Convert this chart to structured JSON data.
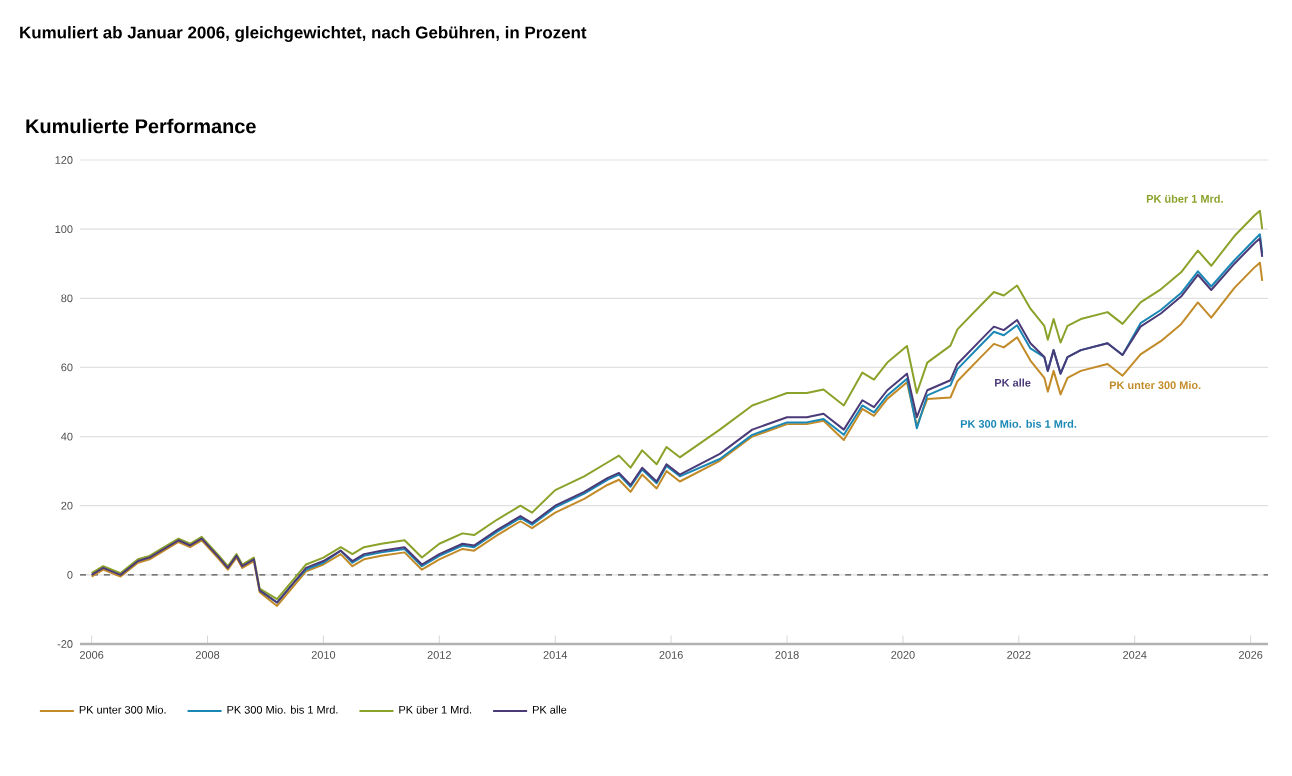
{
  "chart_data": {
    "type": "line",
    "title": "Kumuliert ab Januar 2006, gleichgewichtet, nach Gebühren, in Prozent",
    "subtitle": "Kumulierte Performance",
    "x": [
      2006.0,
      2006.2,
      2006.5,
      2006.8,
      2007.0,
      2007.2,
      2007.5,
      2007.7,
      2007.9,
      2008.2,
      2008.35,
      2008.5,
      2008.6,
      2008.8,
      2008.9,
      2009.2,
      2009.5,
      2009.7,
      2010.0,
      2010.3,
      2010.5,
      2010.7,
      2011.0,
      2011.4,
      2011.7,
      2012.0,
      2012.4,
      2012.6,
      2013.0,
      2013.4,
      2013.6,
      2014.0,
      2014.5,
      2014.9,
      2015.1,
      2015.3,
      2015.5,
      2015.75,
      2015.92,
      2016.15,
      2016.84,
      2017.4,
      2018.0,
      2018.34,
      2018.63,
      2018.98,
      2019.3,
      2019.5,
      2019.73,
      2020.07,
      2020.24,
      2020.42,
      2020.82,
      2020.94,
      2021.34,
      2021.57,
      2021.74,
      2021.97,
      2022.2,
      2022.44,
      2022.5,
      2022.6,
      2022.72,
      2022.84,
      2023.07,
      2023.53,
      2023.79,
      2024.1,
      2024.45,
      2024.8,
      2025.09,
      2025.32,
      2025.72,
      2026.07,
      2026.16,
      2026.2
    ],
    "series": [
      {
        "name": "PK unter 300 Mio.",
        "color": "#c28b28",
        "values": [
          -0.5,
          1.5,
          -0.5,
          3.5,
          4.5,
          6.5,
          9.5,
          8,
          10,
          4.5,
          1.5,
          5,
          2,
          4,
          -5,
          -9,
          -3,
          1,
          3,
          6,
          2.5,
          4.5,
          5.5,
          6.5,
          1.5,
          4.5,
          7.5,
          7,
          11.5,
          15.5,
          13.5,
          18,
          22,
          26,
          27.5,
          24,
          29,
          25,
          30,
          27,
          33,
          40,
          43.6,
          43.6,
          44.6,
          39,
          48,
          46,
          50.9,
          55.7,
          43.1,
          50.9,
          51.3,
          56,
          62.9,
          66.8,
          65.8,
          68.7,
          62,
          57,
          53,
          59,
          52.2,
          57,
          59,
          61,
          57.6,
          63.8,
          67.6,
          72.5,
          78.8,
          74.4,
          83,
          89,
          90.3,
          85
        ]
      },
      {
        "name": "PK 300 Mio. bis 1 Mrd.",
        "color": "#1a87b5",
        "values": [
          null,
          null,
          null,
          null,
          null,
          null,
          null,
          null,
          null,
          null,
          null,
          null,
          null,
          null,
          -4.5,
          -8,
          -2,
          1.5,
          3.5,
          7,
          3.5,
          5.5,
          6.5,
          7.5,
          2.5,
          5.5,
          8.5,
          8,
          12.5,
          16.5,
          14.5,
          19.5,
          23.5,
          27.5,
          29,
          25.5,
          30.5,
          26.5,
          31.5,
          28.5,
          33.5,
          40.5,
          44.1,
          44.1,
          45.1,
          40.5,
          49,
          47,
          51.9,
          56.7,
          42.4,
          51.9,
          54.8,
          59.5,
          66.4,
          70.3,
          69.3,
          72.2,
          65.5,
          63,
          59,
          65,
          58.2,
          63,
          65,
          67,
          63.6,
          72.8,
          76.6,
          81.5,
          87.8,
          83.4,
          91,
          97,
          98.5,
          93
        ]
      },
      {
        "name": "PK über 1 Mrd.",
        "color": "#8aa22a",
        "values": [
          0.5,
          2.5,
          0.5,
          4.5,
          5.5,
          7.5,
          10.5,
          9,
          11,
          5.5,
          2.5,
          6,
          3,
          5,
          -4,
          -7,
          -1,
          3,
          5,
          8,
          6,
          8,
          9,
          10,
          5,
          9,
          12,
          11.5,
          16,
          20,
          18,
          24.5,
          28.5,
          32.5,
          34.5,
          31,
          36,
          32,
          37,
          34,
          42,
          49,
          52.6,
          52.6,
          53.6,
          49,
          58.5,
          56.5,
          61.4,
          66.2,
          52.6,
          61.4,
          66.3,
          71,
          77.9,
          81.8,
          80.8,
          83.7,
          77,
          72,
          68,
          74,
          67.2,
          72,
          74,
          76,
          72.6,
          78.8,
          82.6,
          87.5,
          93.8,
          89.4,
          98,
          104,
          105.3,
          100
        ]
      },
      {
        "name": "PK alle",
        "color": "#4b3a78",
        "values": [
          0,
          2,
          0,
          4,
          5,
          7,
          10,
          8.5,
          10.5,
          5,
          2,
          5.5,
          2.5,
          4.5,
          -4.5,
          -8,
          -2,
          2,
          4,
          7,
          4,
          6,
          7,
          8,
          3,
          6,
          9,
          8.5,
          13,
          17,
          15,
          20,
          24,
          28,
          29.5,
          26,
          31,
          27,
          32,
          29,
          35,
          42,
          45.6,
          45.6,
          46.6,
          42,
          50.5,
          48.5,
          53.4,
          58.2,
          45.6,
          53.4,
          56.3,
          61,
          67.9,
          71.8,
          70.8,
          73.7,
          67,
          63,
          59,
          65,
          58.2,
          63,
          65,
          67,
          63.6,
          71.8,
          75.6,
          80.5,
          86.8,
          82.4,
          90,
          96,
          97.3,
          92
        ]
      }
    ],
    "annotations": [
      "PK unter 300 Mio.",
      "PK 300 Mio. bis 1 Mrd.",
      "PK über 1 Mrd.",
      "PK alle"
    ],
    "xlim": [
      2005.8,
      2026.3
    ],
    "ylim": [
      -20,
      120
    ],
    "xticks": [
      2006,
      2008,
      2010,
      2012,
      2014,
      2016,
      2018,
      2020,
      2022,
      2024,
      2026
    ],
    "yticks": [
      -20,
      0,
      20,
      40,
      60,
      80,
      100,
      120
    ],
    "ref_lines": [
      {
        "axis": "y",
        "value": 0,
        "color": "#555555",
        "line_style": "dashed"
      }
    ],
    "grid": "y",
    "legend": "bottom",
    "line_style": "solid"
  }
}
